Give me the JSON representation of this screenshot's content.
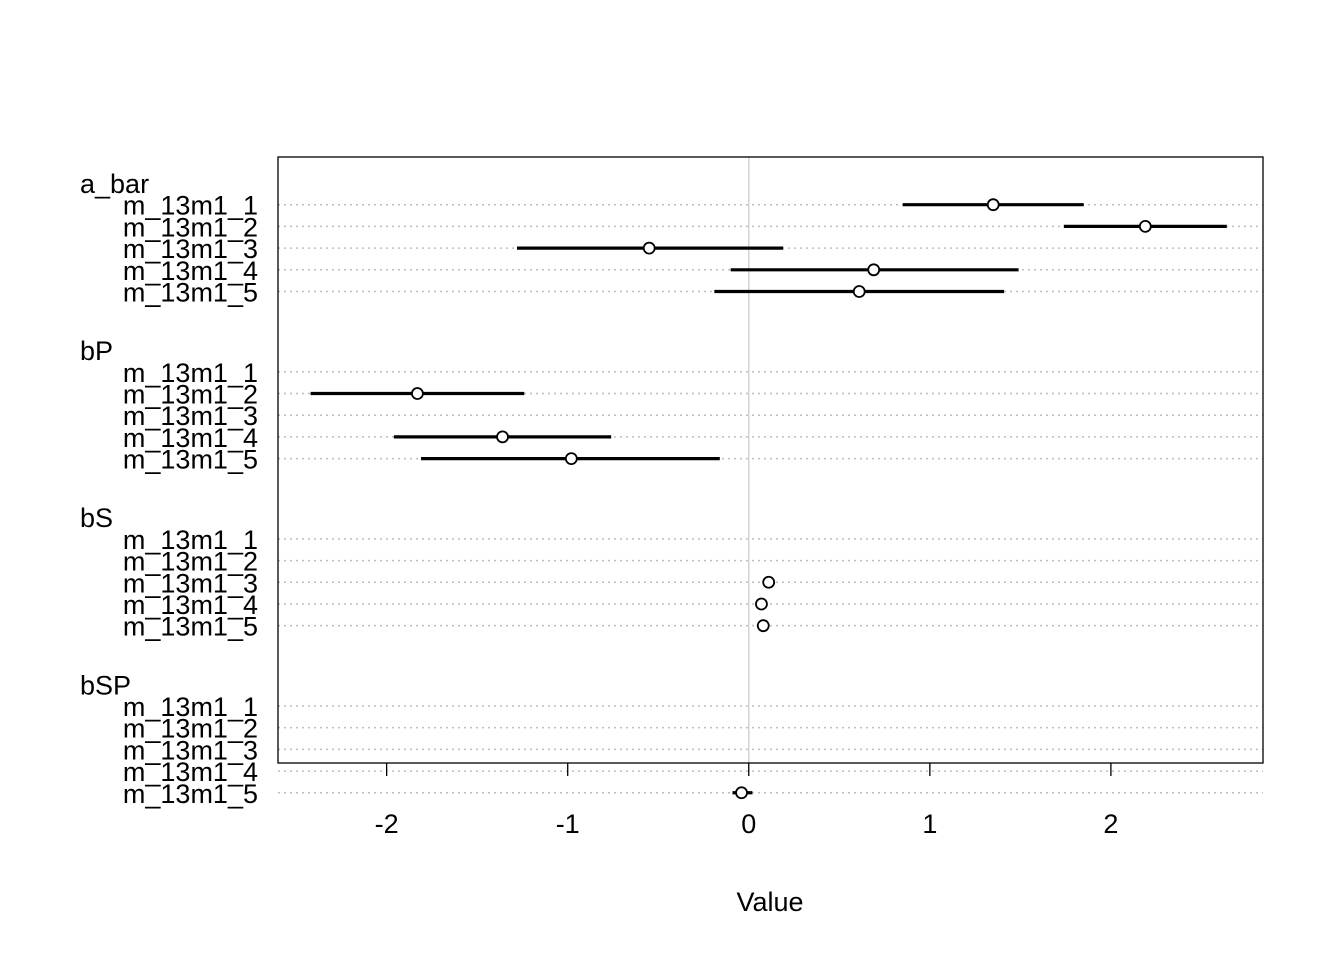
{
  "chart_data": {
    "type": "coefficient-dot-plot",
    "xlabel": "Value",
    "xlim": [
      -2.6,
      2.84
    ],
    "xticks": [
      -2,
      -1,
      0,
      1,
      2
    ],
    "xtick_labels": [
      "-2",
      "-1",
      "0",
      "1",
      "2"
    ],
    "reference_line_x": 0,
    "grid": "dotted horizontal lines per row",
    "groups": [
      {
        "name": "a_bar",
        "rows": [
          {
            "label": "m_13m1_1",
            "mean": 1.35,
            "lower": 0.85,
            "upper": 1.85
          },
          {
            "label": "m_13m1_2",
            "mean": 2.19,
            "lower": 1.74,
            "upper": 2.64
          },
          {
            "label": "m_13m1_3",
            "mean": -0.55,
            "lower": -1.28,
            "upper": 0.19
          },
          {
            "label": "m_13m1_4",
            "mean": 0.69,
            "lower": -0.1,
            "upper": 1.49
          },
          {
            "label": "m_13m1_5",
            "mean": 0.61,
            "lower": -0.19,
            "upper": 1.41
          }
        ]
      },
      {
        "name": "bP",
        "rows": [
          {
            "label": "m_13m1_1",
            "mean": null,
            "lower": null,
            "upper": null
          },
          {
            "label": "m_13m1_2",
            "mean": -1.83,
            "lower": -2.42,
            "upper": -1.24
          },
          {
            "label": "m_13m1_3",
            "mean": null,
            "lower": null,
            "upper": null
          },
          {
            "label": "m_13m1_4",
            "mean": -1.36,
            "lower": -1.96,
            "upper": -0.76
          },
          {
            "label": "m_13m1_5",
            "mean": -0.98,
            "lower": -1.81,
            "upper": -0.16
          }
        ]
      },
      {
        "name": "bS",
        "rows": [
          {
            "label": "m_13m1_1",
            "mean": null,
            "lower": null,
            "upper": null
          },
          {
            "label": "m_13m1_2",
            "mean": null,
            "lower": null,
            "upper": null
          },
          {
            "label": "m_13m1_3",
            "mean": 0.11,
            "lower": 0.1,
            "upper": 0.12
          },
          {
            "label": "m_13m1_4",
            "mean": 0.07,
            "lower": 0.06,
            "upper": 0.08
          },
          {
            "label": "m_13m1_5",
            "mean": 0.08,
            "lower": 0.07,
            "upper": 0.09
          }
        ]
      },
      {
        "name": "bSP",
        "rows": [
          {
            "label": "m_13m1_1",
            "mean": null,
            "lower": null,
            "upper": null
          },
          {
            "label": "m_13m1_2",
            "mean": null,
            "lower": null,
            "upper": null
          },
          {
            "label": "m_13m1_3",
            "mean": null,
            "lower": null,
            "upper": null
          },
          {
            "label": "m_13m1_4",
            "mean": null,
            "lower": null,
            "upper": null
          },
          {
            "label": "m_13m1_5",
            "mean": -0.04,
            "lower": -0.09,
            "upper": 0.02
          }
        ]
      }
    ]
  }
}
